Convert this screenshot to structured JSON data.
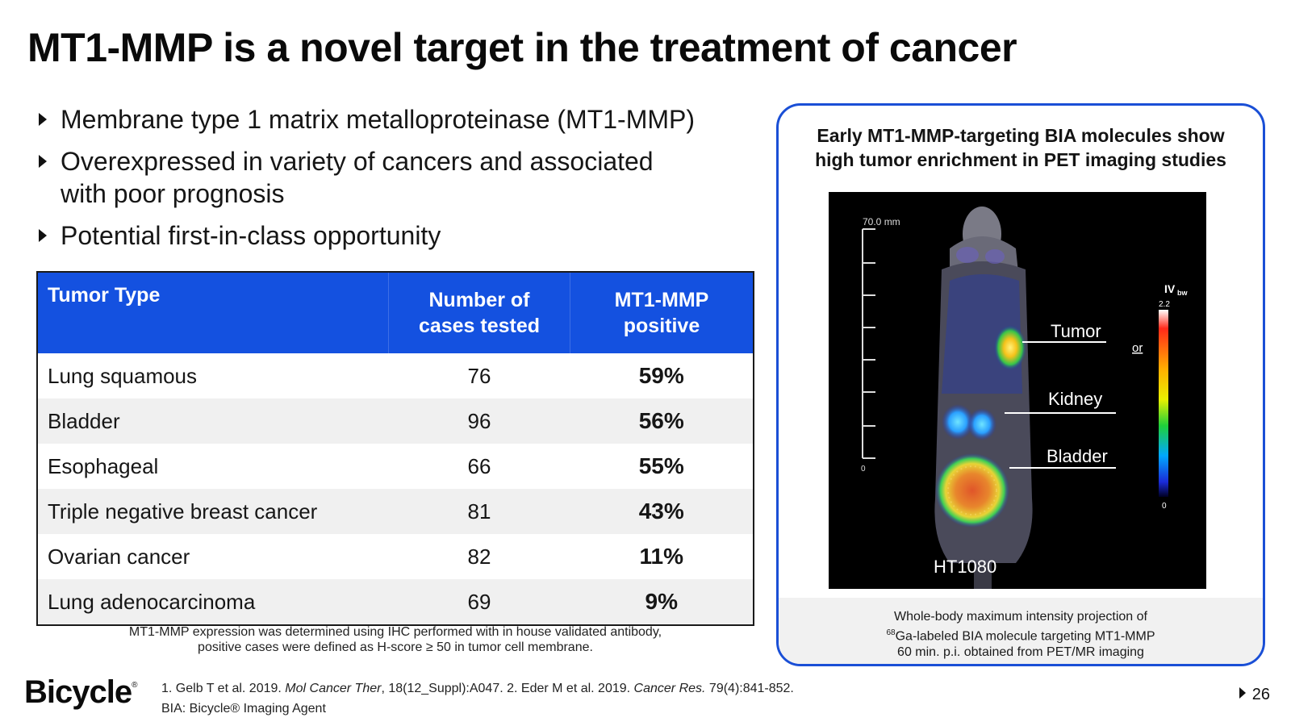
{
  "slide": {
    "title": "MT1-MMP is a novel target in the treatment of cancer",
    "page_number": "26"
  },
  "bullets": [
    {
      "text": "Membrane type 1 matrix metalloproteinase (MT1-MMP)"
    },
    {
      "text": "Overexpressed in variety of cancers and associated with poor prognosis"
    },
    {
      "text": "Potential first-in-class opportunity"
    }
  ],
  "table": {
    "headers": [
      "Tumor Type",
      "Number of cases tested",
      "MT1-MMP positive"
    ],
    "rows": [
      {
        "tumor": "Lung squamous",
        "cases": "76",
        "positive": "59%"
      },
      {
        "tumor": "Bladder",
        "cases": "96",
        "positive": "56%"
      },
      {
        "tumor": "Esophageal",
        "cases": "66",
        "positive": "55%"
      },
      {
        "tumor": "Triple negative breast cancer",
        "cases": "81",
        "positive": "43%"
      },
      {
        "tumor": "Ovarian cancer",
        "cases": "82",
        "positive": "11%"
      },
      {
        "tumor": "Lung adenocarcinoma",
        "cases": "69",
        "positive": "9%"
      }
    ],
    "note_line1": "MT1-MMP expression was determined using IHC performed with in house validated antibody,",
    "note_line2": "positive cases were defined as H-score ≥ 50 in tumor cell membrane."
  },
  "panel": {
    "title_line1": "Early MT1-MMP-targeting BIA molecules show",
    "title_line2": "high tumor enrichment in PET imaging studies",
    "image": {
      "scale_label": "70.0 mm",
      "scale_zero": "0",
      "labels": {
        "tumor": "Tumor",
        "kidney": "Kidney",
        "bladder": "Bladder",
        "model": "HT1080",
        "or": "or"
      },
      "colorbar": {
        "unit": "IV",
        "unit_sub": "bw",
        "max": "2.2",
        "min": "0"
      }
    },
    "caption_line1": "Whole-body maximum intensity projection of",
    "caption_sup": "68",
    "caption_line2": "Ga-labeled BIA molecule targeting MT1-MMP",
    "caption_line3": "60 min. p.i. obtained from PET/MR imaging"
  },
  "footer": {
    "logo_text": "Bicycle",
    "logo_mark": "®",
    "ref1_pre": "1. Gelb T et al. 2019. ",
    "ref1_journal": "Mol Cancer Ther",
    "ref1_post": ", 18(12_Suppl):A047. 2. Eder M et al. 2019. ",
    "ref2_journal": "Cancer Res.",
    "ref2_post": " 79(4):841-852.",
    "ref_line2": "BIA: Bicycle® Imaging Agent"
  }
}
